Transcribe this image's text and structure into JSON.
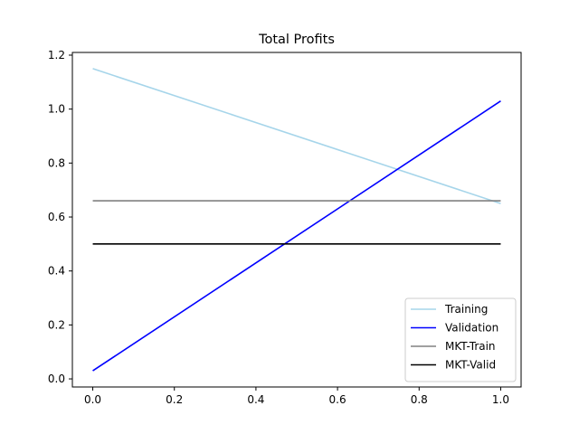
{
  "chart_data": {
    "type": "line",
    "title": "Total Profits",
    "xlabel": "",
    "ylabel": "",
    "xlim": [
      -0.05,
      1.05
    ],
    "ylim": [
      -0.03,
      1.21
    ],
    "xticks": [
      0.0,
      0.2,
      0.4,
      0.6,
      0.8,
      1.0
    ],
    "xtick_labels": [
      "0.0",
      "0.2",
      "0.4",
      "0.6",
      "0.8",
      "1.0"
    ],
    "yticks": [
      0.0,
      0.2,
      0.4,
      0.6,
      0.8,
      1.0,
      1.2
    ],
    "ytick_labels": [
      "0.0",
      "0.2",
      "0.4",
      "0.6",
      "0.8",
      "1.0",
      "1.2"
    ],
    "grid": false,
    "legend_position": "lower-right",
    "series": [
      {
        "name": "Training",
        "color": "#a6d5ea",
        "x": [
          0.0,
          1.0
        ],
        "y": [
          1.15,
          0.65
        ]
      },
      {
        "name": "Validation",
        "color": "#0000ff",
        "x": [
          0.0,
          1.0
        ],
        "y": [
          0.03,
          1.03
        ]
      },
      {
        "name": "MKT-Train",
        "color": "#808080",
        "x": [
          0.0,
          1.0
        ],
        "y": [
          0.66,
          0.66
        ]
      },
      {
        "name": "MKT-Valid",
        "color": "#000000",
        "x": [
          0.0,
          1.0
        ],
        "y": [
          0.5,
          0.5
        ]
      }
    ]
  }
}
